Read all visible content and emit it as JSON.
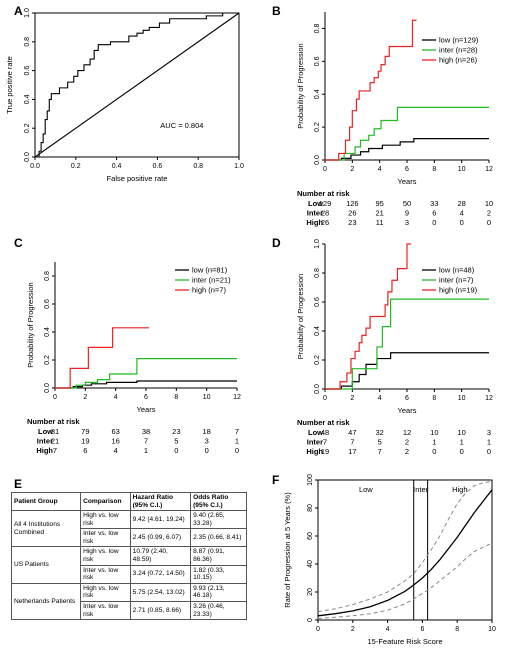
{
  "panels": {
    "A": {
      "label": "A"
    },
    "B": {
      "label": "B"
    },
    "C": {
      "label": "C"
    },
    "D": {
      "label": "D"
    },
    "E": {
      "label": "E"
    },
    "F": {
      "label": "F"
    }
  },
  "colors": {
    "low": "#000000",
    "inter": "#22bb22",
    "high": "#ee2222",
    "diag": "#000000",
    "ci": "#888888"
  },
  "chart_data": [
    {
      "id": "A",
      "type": "line",
      "xlabel": "False positive rate",
      "ylabel": "True positive rate",
      "xlim": [
        0,
        1
      ],
      "ylim": [
        0,
        1
      ],
      "xticks": [
        "0.0",
        "0.2",
        "0.4",
        "0.6",
        "0.8",
        "1.0"
      ],
      "yticks": [
        "0.0",
        "0.2",
        "0.4",
        "0.6",
        "0.8",
        "1.0"
      ],
      "annotation": "AUC = 0.804",
      "roc": [
        [
          0,
          0
        ],
        [
          0.02,
          0
        ],
        [
          0.02,
          0.04
        ],
        [
          0.03,
          0.04
        ],
        [
          0.03,
          0.1
        ],
        [
          0.04,
          0.1
        ],
        [
          0.04,
          0.16
        ],
        [
          0.05,
          0.16
        ],
        [
          0.05,
          0.26
        ],
        [
          0.06,
          0.26
        ],
        [
          0.06,
          0.32
        ],
        [
          0.07,
          0.32
        ],
        [
          0.07,
          0.4
        ],
        [
          0.08,
          0.4
        ],
        [
          0.08,
          0.44
        ],
        [
          0.12,
          0.44
        ],
        [
          0.12,
          0.48
        ],
        [
          0.16,
          0.48
        ],
        [
          0.16,
          0.52
        ],
        [
          0.19,
          0.52
        ],
        [
          0.19,
          0.56
        ],
        [
          0.21,
          0.56
        ],
        [
          0.21,
          0.6
        ],
        [
          0.24,
          0.6
        ],
        [
          0.24,
          0.64
        ],
        [
          0.27,
          0.64
        ],
        [
          0.27,
          0.68
        ],
        [
          0.29,
          0.68
        ],
        [
          0.29,
          0.74
        ],
        [
          0.31,
          0.74
        ],
        [
          0.31,
          0.78
        ],
        [
          0.37,
          0.78
        ],
        [
          0.37,
          0.8
        ],
        [
          0.46,
          0.8
        ],
        [
          0.46,
          0.84
        ],
        [
          0.5,
          0.84
        ],
        [
          0.5,
          0.86
        ],
        [
          0.53,
          0.86
        ],
        [
          0.53,
          0.88
        ],
        [
          0.56,
          0.88
        ],
        [
          0.56,
          0.9
        ],
        [
          0.61,
          0.9
        ],
        [
          0.61,
          0.93
        ],
        [
          0.66,
          0.93
        ],
        [
          0.66,
          0.96
        ],
        [
          0.84,
          0.96
        ],
        [
          0.84,
          0.98
        ],
        [
          0.92,
          0.98
        ],
        [
          0.92,
          1.0
        ],
        [
          1.0,
          1.0
        ]
      ],
      "diagonal": [
        [
          0,
          0
        ],
        [
          1,
          1
        ]
      ]
    },
    {
      "id": "B",
      "type": "line",
      "xlabel": "Years",
      "ylabel": "Probability of Progression",
      "xlim": [
        0,
        12
      ],
      "ylim": [
        0,
        0.9
      ],
      "xticks": [
        "0",
        "2",
        "4",
        "6",
        "8",
        "10",
        "12"
      ],
      "yticks": [
        "0.0",
        "0.2",
        "0.4",
        "0.6",
        "0.8"
      ],
      "series": [
        {
          "name": "low (n=129)",
          "color": "#000000",
          "steps": [
            [
              0,
              0
            ],
            [
              1.2,
              0.01
            ],
            [
              1.9,
              0.03
            ],
            [
              2.6,
              0.05
            ],
            [
              3.2,
              0.07
            ],
            [
              4.2,
              0.09
            ],
            [
              5.5,
              0.11
            ],
            [
              6.5,
              0.13
            ],
            [
              12,
              0.13
            ]
          ]
        },
        {
          "name": "inter (n=28)",
          "color": "#22bb22",
          "steps": [
            [
              0,
              0
            ],
            [
              1.4,
              0.04
            ],
            [
              2.2,
              0.08
            ],
            [
              2.6,
              0.12
            ],
            [
              3.2,
              0.15
            ],
            [
              3.6,
              0.19
            ],
            [
              4.1,
              0.24
            ],
            [
              5.3,
              0.32
            ],
            [
              12,
              0.32
            ]
          ]
        },
        {
          "name": "high (n=26)",
          "color": "#ee2222",
          "steps": [
            [
              0,
              0
            ],
            [
              1.0,
              0.04
            ],
            [
              1.5,
              0.12
            ],
            [
              1.8,
              0.2
            ],
            [
              2.0,
              0.3
            ],
            [
              2.3,
              0.37
            ],
            [
              2.5,
              0.42
            ],
            [
              3.3,
              0.47
            ],
            [
              3.6,
              0.5
            ],
            [
              3.9,
              0.54
            ],
            [
              4.1,
              0.58
            ],
            [
              4.4,
              0.63
            ],
            [
              4.7,
              0.69
            ],
            [
              5.0,
              0.69
            ],
            [
              6.0,
              0.69
            ],
            [
              6.4,
              0.85
            ],
            [
              6.7,
              0.85
            ]
          ]
        }
      ],
      "risk_title": "Number at risk",
      "risk_rows": [
        {
          "label": "Low",
          "values": [
            "129",
            "126",
            "95",
            "50",
            "33",
            "28",
            "10"
          ]
        },
        {
          "label": "Inter",
          "values": [
            "28",
            "26",
            "21",
            "9",
            "6",
            "4",
            "2"
          ]
        },
        {
          "label": "High",
          "values": [
            "26",
            "23",
            "11",
            "3",
            "0",
            "0",
            "0"
          ]
        }
      ]
    },
    {
      "id": "C",
      "type": "line",
      "xlabel": "Years",
      "ylabel": "Probability of Progression",
      "xlim": [
        0,
        12
      ],
      "ylim": [
        0,
        0.9
      ],
      "xticks": [
        "0",
        "2",
        "4",
        "6",
        "8",
        "10",
        "12"
      ],
      "yticks": [
        "0.0",
        "0.2",
        "0.4",
        "0.6",
        "0.8"
      ],
      "series": [
        {
          "name": "low (n=81)",
          "color": "#000000",
          "steps": [
            [
              0,
              0
            ],
            [
              1.2,
              0.01
            ],
            [
              1.8,
              0.02
            ],
            [
              2.4,
              0.03
            ],
            [
              3.4,
              0.04
            ],
            [
              5.4,
              0.05
            ],
            [
              12,
              0.05
            ]
          ]
        },
        {
          "name": "inter (n=21)",
          "color": "#22bb22",
          "steps": [
            [
              0,
              0
            ],
            [
              1.4,
              0.02
            ],
            [
              2.0,
              0.04
            ],
            [
              2.8,
              0.06
            ],
            [
              3.6,
              0.1
            ],
            [
              5.4,
              0.21
            ],
            [
              12,
              0.21
            ]
          ]
        },
        {
          "name": "high (n=7)",
          "color": "#ee2222",
          "steps": [
            [
              0,
              0
            ],
            [
              1.0,
              0.14
            ],
            [
              2.2,
              0.29
            ],
            [
              3.8,
              0.43
            ],
            [
              6.2,
              0.43
            ]
          ]
        }
      ],
      "risk_title": "Number at risk",
      "risk_rows": [
        {
          "label": "Low",
          "values": [
            "81",
            "79",
            "63",
            "38",
            "23",
            "18",
            "7"
          ]
        },
        {
          "label": "Inter",
          "values": [
            "21",
            "19",
            "16",
            "7",
            "5",
            "3",
            "1"
          ]
        },
        {
          "label": "High",
          "values": [
            "7",
            "6",
            "4",
            "1",
            "0",
            "0",
            "0"
          ]
        }
      ]
    },
    {
      "id": "D",
      "type": "line",
      "xlabel": "Years",
      "ylabel": "Probability of Progression",
      "xlim": [
        0,
        12
      ],
      "ylim": [
        0,
        1.0
      ],
      "xticks": [
        "0",
        "2",
        "4",
        "6",
        "8",
        "10",
        "12"
      ],
      "yticks": [
        "0.0",
        "0.2",
        "0.4",
        "0.6",
        "0.8",
        "1.0"
      ],
      "series": [
        {
          "name": "low (n=48)",
          "color": "#000000",
          "steps": [
            [
              0,
              0
            ],
            [
              1.2,
              0.02
            ],
            [
              2.0,
              0.05
            ],
            [
              2.5,
              0.1
            ],
            [
              3.0,
              0.17
            ],
            [
              3.8,
              0.21
            ],
            [
              4.8,
              0.25
            ],
            [
              12,
              0.25
            ]
          ]
        },
        {
          "name": "inter (n=7)",
          "color": "#22bb22",
          "steps": [
            [
              0,
              0
            ],
            [
              2.0,
              0.14
            ],
            [
              3.8,
              0.29
            ],
            [
              4.2,
              0.43
            ],
            [
              4.8,
              0.62
            ],
            [
              12,
              0.62
            ]
          ]
        },
        {
          "name": "high (n=19)",
          "color": "#ee2222",
          "steps": [
            [
              0,
              0
            ],
            [
              1.1,
              0.05
            ],
            [
              1.6,
              0.11
            ],
            [
              1.9,
              0.21
            ],
            [
              2.2,
              0.26
            ],
            [
              2.5,
              0.32
            ],
            [
              2.7,
              0.37
            ],
            [
              3.0,
              0.42
            ],
            [
              3.3,
              0.5
            ],
            [
              4.1,
              0.5
            ],
            [
              4.4,
              0.58
            ],
            [
              4.6,
              0.67
            ],
            [
              4.9,
              0.75
            ],
            [
              5.3,
              0.83
            ],
            [
              5.8,
              0.83
            ],
            [
              6.0,
              1.0
            ],
            [
              6.3,
              1.0
            ]
          ]
        }
      ],
      "risk_title": "Number at risk",
      "risk_rows": [
        {
          "label": "Low",
          "values": [
            "48",
            "47",
            "32",
            "12",
            "10",
            "10",
            "3"
          ]
        },
        {
          "label": "Inter",
          "values": [
            "7",
            "7",
            "5",
            "2",
            "1",
            "1",
            "1"
          ]
        },
        {
          "label": "High",
          "values": [
            "19",
            "17",
            "7",
            "2",
            "0",
            "0",
            "0"
          ]
        }
      ]
    },
    {
      "id": "E",
      "type": "table",
      "headers": [
        "Patient Group",
        "Comparison",
        "Hazard Ratio (95% C.I.)",
        "Odds Ratio (95% C.I.)"
      ],
      "groups": [
        {
          "name": "All 4 Institutions Combined",
          "rows": [
            {
              "comparison": "High vs. low risk",
              "hr": "9.42 (4.61, 19.24)",
              "or": "9.40 (2.65, 33.28)"
            },
            {
              "comparison": "Inter vs. low risk",
              "hr": "2.45 (0.99, 6.07)",
              "or": "2.35 (0.66, 8.41)"
            }
          ]
        },
        {
          "name": "US Patients",
          "rows": [
            {
              "comparison": "High vs. low risk",
              "hr": "10.79 (2.40, 48.59)",
              "or": "8.87 (0.91, 86.36)"
            },
            {
              "comparison": "Inter vs. low risk",
              "hr": "3.24 (0.72, 14.50)",
              "or": "1.82 (0.33, 10.15)"
            }
          ]
        },
        {
          "name": "Netherlands Patients",
          "rows": [
            {
              "comparison": "High vs. low risk",
              "hr": "5.75 (2.54, 13.02)",
              "or": "9.93 (2.13, 46.18)"
            },
            {
              "comparison": "Inter vs. low risk",
              "hr": "2.71 (0.85, 8.66)",
              "or": "3.26 (0.46, 23.33)"
            }
          ]
        }
      ]
    },
    {
      "id": "F",
      "type": "line",
      "xlabel": "15-Feature Risk Score",
      "ylabel": "Rate of Progression at 5 Years (%)",
      "xlim": [
        0,
        10
      ],
      "ylim": [
        0,
        100
      ],
      "xticks": [
        "0",
        "2",
        "4",
        "6",
        "8",
        "10"
      ],
      "yticks": [
        "0",
        "20",
        "40",
        "60",
        "80",
        "100"
      ],
      "cutoffs": [
        5.5,
        6.3
      ],
      "regions": [
        "Low",
        "Inter",
        "High"
      ],
      "series": [
        {
          "name": "estimate",
          "dashed": false,
          "x": [
            0,
            1,
            2,
            3,
            4,
            5,
            5.5,
            6,
            6.5,
            7,
            7.5,
            8,
            8.5,
            9,
            9.5,
            10
          ],
          "y": [
            3,
            4.5,
            6.5,
            9.5,
            14,
            20.5,
            25,
            30,
            36,
            43,
            51,
            59,
            68,
            77,
            85,
            93
          ]
        },
        {
          "name": "upper",
          "dashed": true,
          "x": [
            0,
            1,
            2,
            3,
            4,
            5,
            5.5,
            6,
            6.5,
            7,
            7.5,
            8,
            8.5,
            9,
            9.5,
            10
          ],
          "y": [
            6,
            8,
            11,
            15,
            20,
            28,
            33,
            41,
            50,
            60,
            72,
            83,
            91,
            96,
            98,
            99
          ]
        },
        {
          "name": "lower",
          "dashed": true,
          "x": [
            0,
            1,
            2,
            3,
            4,
            5,
            5.5,
            6,
            6.5,
            7,
            7.5,
            8,
            8.5,
            9,
            9.5,
            10
          ],
          "y": [
            1,
            2,
            3,
            4.5,
            7,
            11.5,
            15,
            19,
            23,
            28,
            33,
            38,
            44,
            49,
            52,
            55
          ]
        }
      ]
    }
  ]
}
